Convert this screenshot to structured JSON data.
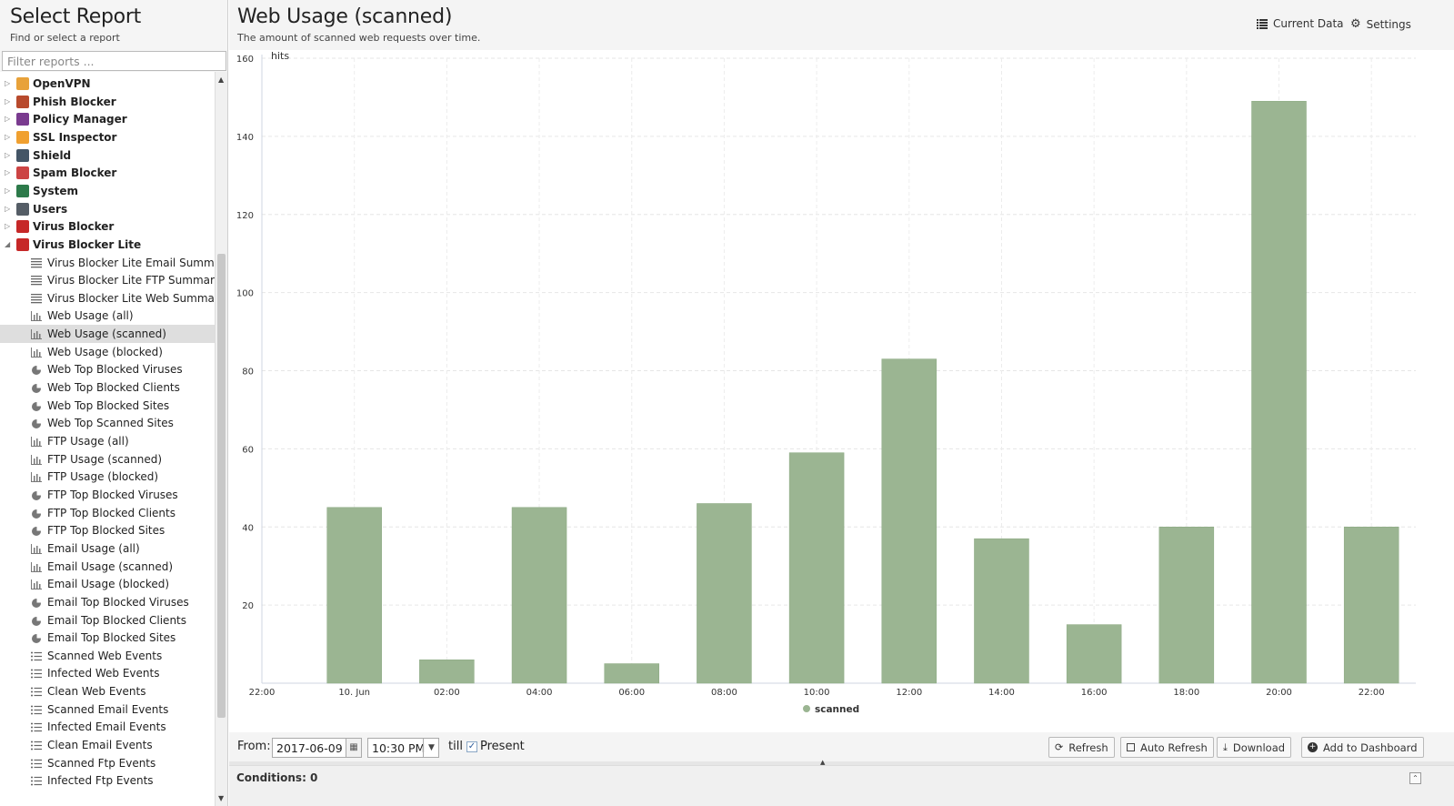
{
  "left_panel": {
    "title": "Select Report",
    "subtitle": "Find or select a report",
    "filter_placeholder": "Filter reports ...",
    "groups": [
      {
        "label": "OpenVPN",
        "icon": "openvpn-icon",
        "color": "#e8a23a",
        "expanded": false
      },
      {
        "label": "Phish Blocker",
        "icon": "phish-blocker-icon",
        "color": "#b84a2d",
        "expanded": false
      },
      {
        "label": "Policy Manager",
        "icon": "policy-manager-icon",
        "color": "#7a3b8f",
        "expanded": false
      },
      {
        "label": "SSL Inspector",
        "icon": "ssl-inspector-icon",
        "color": "#f0a030",
        "expanded": false
      },
      {
        "label": "Shield",
        "icon": "shield-icon",
        "color": "#445566",
        "expanded": false
      },
      {
        "label": "Spam Blocker",
        "icon": "spam-blocker-icon",
        "color": "#cc4444",
        "expanded": false
      },
      {
        "label": "System",
        "icon": "system-icon",
        "color": "#2d7a4a",
        "expanded": false
      },
      {
        "label": "Users",
        "icon": "users-icon",
        "color": "#555d66",
        "expanded": false
      },
      {
        "label": "Virus Blocker",
        "icon": "virus-blocker-icon",
        "color": "#c62828",
        "expanded": false
      },
      {
        "label": "Virus Blocker Lite",
        "icon": "virus-blocker-lite-icon",
        "color": "#c62828",
        "expanded": true
      }
    ],
    "reports": [
      {
        "label": "Virus Blocker Lite Email Summary",
        "icon": "text-report-icon"
      },
      {
        "label": "Virus Blocker Lite FTP Summary",
        "icon": "text-report-icon"
      },
      {
        "label": "Virus Blocker Lite Web Summary",
        "icon": "text-report-icon"
      },
      {
        "label": "Web Usage (all)",
        "icon": "bar-chart-icon"
      },
      {
        "label": "Web Usage (scanned)",
        "icon": "bar-chart-icon",
        "selected": true
      },
      {
        "label": "Web Usage (blocked)",
        "icon": "bar-chart-icon"
      },
      {
        "label": "Web Top Blocked Viruses",
        "icon": "pie-chart-icon"
      },
      {
        "label": "Web Top Blocked Clients",
        "icon": "pie-chart-icon"
      },
      {
        "label": "Web Top Blocked Sites",
        "icon": "pie-chart-icon"
      },
      {
        "label": "Web Top Scanned Sites",
        "icon": "pie-chart-icon"
      },
      {
        "label": "FTP Usage (all)",
        "icon": "bar-chart-icon"
      },
      {
        "label": "FTP Usage (scanned)",
        "icon": "bar-chart-icon"
      },
      {
        "label": "FTP Usage (blocked)",
        "icon": "bar-chart-icon"
      },
      {
        "label": "FTP Top Blocked Viruses",
        "icon": "pie-chart-icon"
      },
      {
        "label": "FTP Top Blocked Clients",
        "icon": "pie-chart-icon"
      },
      {
        "label": "FTP Top Blocked Sites",
        "icon": "pie-chart-icon"
      },
      {
        "label": "Email Usage (all)",
        "icon": "bar-chart-icon"
      },
      {
        "label": "Email Usage (scanned)",
        "icon": "bar-chart-icon"
      },
      {
        "label": "Email Usage (blocked)",
        "icon": "bar-chart-icon"
      },
      {
        "label": "Email Top Blocked Viruses",
        "icon": "pie-chart-icon"
      },
      {
        "label": "Email Top Blocked Clients",
        "icon": "pie-chart-icon"
      },
      {
        "label": "Email Top Blocked Sites",
        "icon": "pie-chart-icon"
      },
      {
        "label": "Scanned Web Events",
        "icon": "events-list-icon"
      },
      {
        "label": "Infected Web Events",
        "icon": "events-list-icon"
      },
      {
        "label": "Clean Web Events",
        "icon": "events-list-icon"
      },
      {
        "label": "Scanned Email Events",
        "icon": "events-list-icon"
      },
      {
        "label": "Infected Email Events",
        "icon": "events-list-icon"
      },
      {
        "label": "Clean Email Events",
        "icon": "events-list-icon"
      },
      {
        "label": "Scanned Ftp Events",
        "icon": "events-list-icon"
      },
      {
        "label": "Infected Ftp Events",
        "icon": "events-list-icon"
      }
    ]
  },
  "report": {
    "title": "Web Usage (scanned)",
    "description": "The amount of scanned web requests over time.",
    "current_data_label": "Current Data",
    "settings_label": "Settings"
  },
  "chart_data": {
    "type": "bar",
    "x_ticks": [
      "22:00",
      "10. Jun",
      "02:00",
      "04:00",
      "06:00",
      "08:00",
      "10:00",
      "12:00",
      "14:00",
      "16:00",
      "18:00",
      "20:00",
      "22:00"
    ],
    "categories": [
      "10. Jun",
      "02:00",
      "04:00",
      "06:00",
      "08:00",
      "10:00",
      "12:00",
      "14:00",
      "16:00",
      "18:00",
      "20:00",
      "22:00"
    ],
    "series": [
      {
        "name": "scanned",
        "color": "#9bb592",
        "values": [
          45,
          6,
          45,
          5,
          46,
          59,
          83,
          37,
          15,
          40,
          149,
          40
        ]
      }
    ],
    "ylabel": "hits",
    "ylim": [
      0,
      160
    ],
    "yticks": [
      20,
      40,
      60,
      80,
      100,
      120,
      140,
      160
    ],
    "grid": true,
    "legend": "bottom-center"
  },
  "toolbar": {
    "from_label": "From:",
    "date_value": "2017-06-09",
    "time_value": "10:30 PM",
    "till_label": "till",
    "present_checked": true,
    "present_label": "Present",
    "refresh_label": "Refresh",
    "auto_refresh_label": "Auto Refresh",
    "download_label": "Download",
    "add_dashboard_label": "Add to Dashboard"
  },
  "conditions": {
    "label": "Conditions: 0"
  }
}
